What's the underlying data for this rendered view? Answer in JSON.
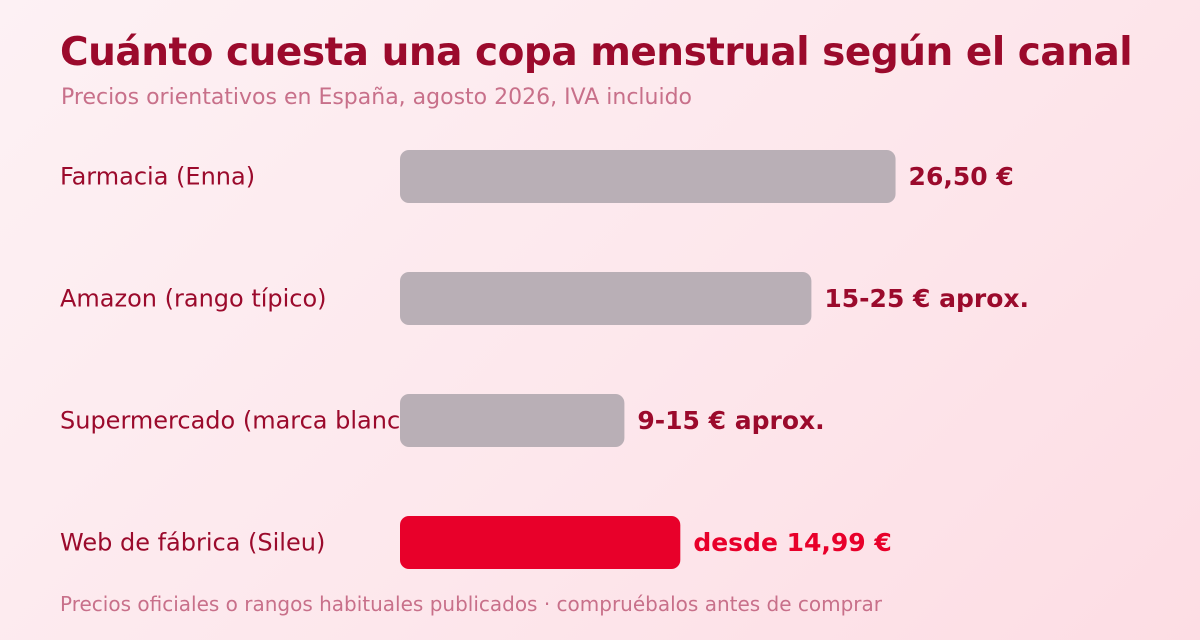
{
  "chart_data": {
    "type": "bar",
    "orientation": "horizontal",
    "title": "Cuánto cuesta una copa menstrual según el canal",
    "subtitle": "Precios orientativos en España, agosto 2026, IVA incluido",
    "footnote": "Precios oficiales o rangos habituales publicados · compruébalos antes de comprar",
    "categories": [
      "Farmacia (Enna)",
      "Amazon (rango típico)",
      "Supermercado (marca blanca)",
      "Web de fábrica (Sileu)"
    ],
    "values": [
      26.5,
      22.0,
      12.0,
      14.99
    ],
    "value_labels": [
      "26,50 €",
      "15-25 € aprox.",
      "9-15 € aprox.",
      "desde 14,99 €"
    ],
    "highlight_index": 3,
    "xlim": [
      0,
      32
    ],
    "grid": false,
    "legend": "none",
    "colors": {
      "bar": "#b9afb6",
      "highlight_bar": "#e8002a",
      "label_text": "#9b0a2c",
      "highlight_text": "#e8002a"
    }
  }
}
